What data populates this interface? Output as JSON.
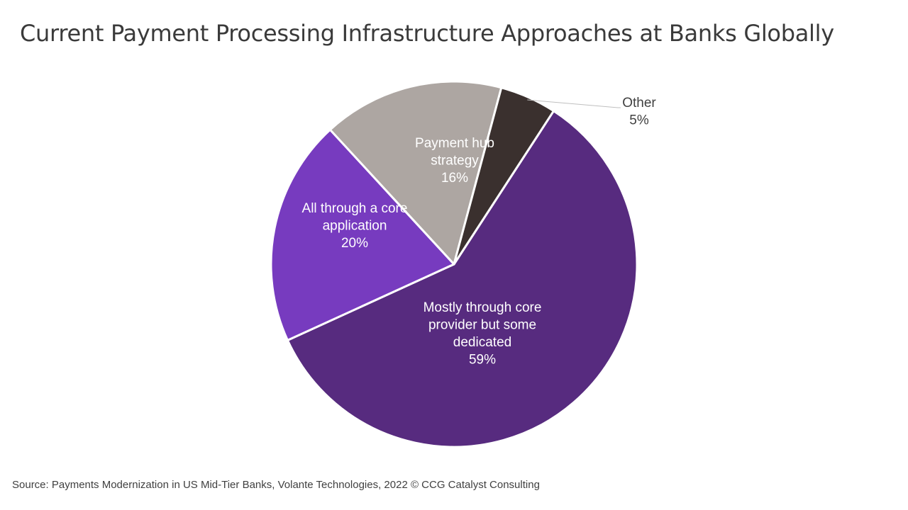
{
  "title": "Current Payment Processing Infrastructure Approaches at Banks Globally",
  "source": "Source: Payments Modernization in US Mid-Tier Banks, Volante Technologies, 2022 © CCG Catalyst Consulting",
  "chart_data": {
    "type": "pie",
    "title": "Current Payment Processing Infrastructure Approaches at Banks Globally",
    "start_angle_deg": 33,
    "direction": "clockwise",
    "slices": [
      {
        "label": "Mostly through core provider but some dedicated",
        "label_lines": [
          "Mostly through core",
          "provider but some",
          "dedicated"
        ],
        "value": 59,
        "display": "59%",
        "color": "#572b7f",
        "text_color": "#ffffff"
      },
      {
        "label": "All through a core application",
        "label_lines": [
          "All through a core",
          "application"
        ],
        "value": 20,
        "display": "20%",
        "color": "#773bbf",
        "text_color": "#ffffff"
      },
      {
        "label": "Payment hub strategy",
        "label_lines": [
          "Payment hub",
          "strategy"
        ],
        "value": 16,
        "display": "16%",
        "color": "#ada6a2",
        "text_color": "#ffffff"
      },
      {
        "label": "Other",
        "label_lines": [
          "Other"
        ],
        "value": 5,
        "display": "5%",
        "color": "#3a302e",
        "text_color": "#404040",
        "label_outside": true
      }
    ],
    "legend": "none"
  }
}
